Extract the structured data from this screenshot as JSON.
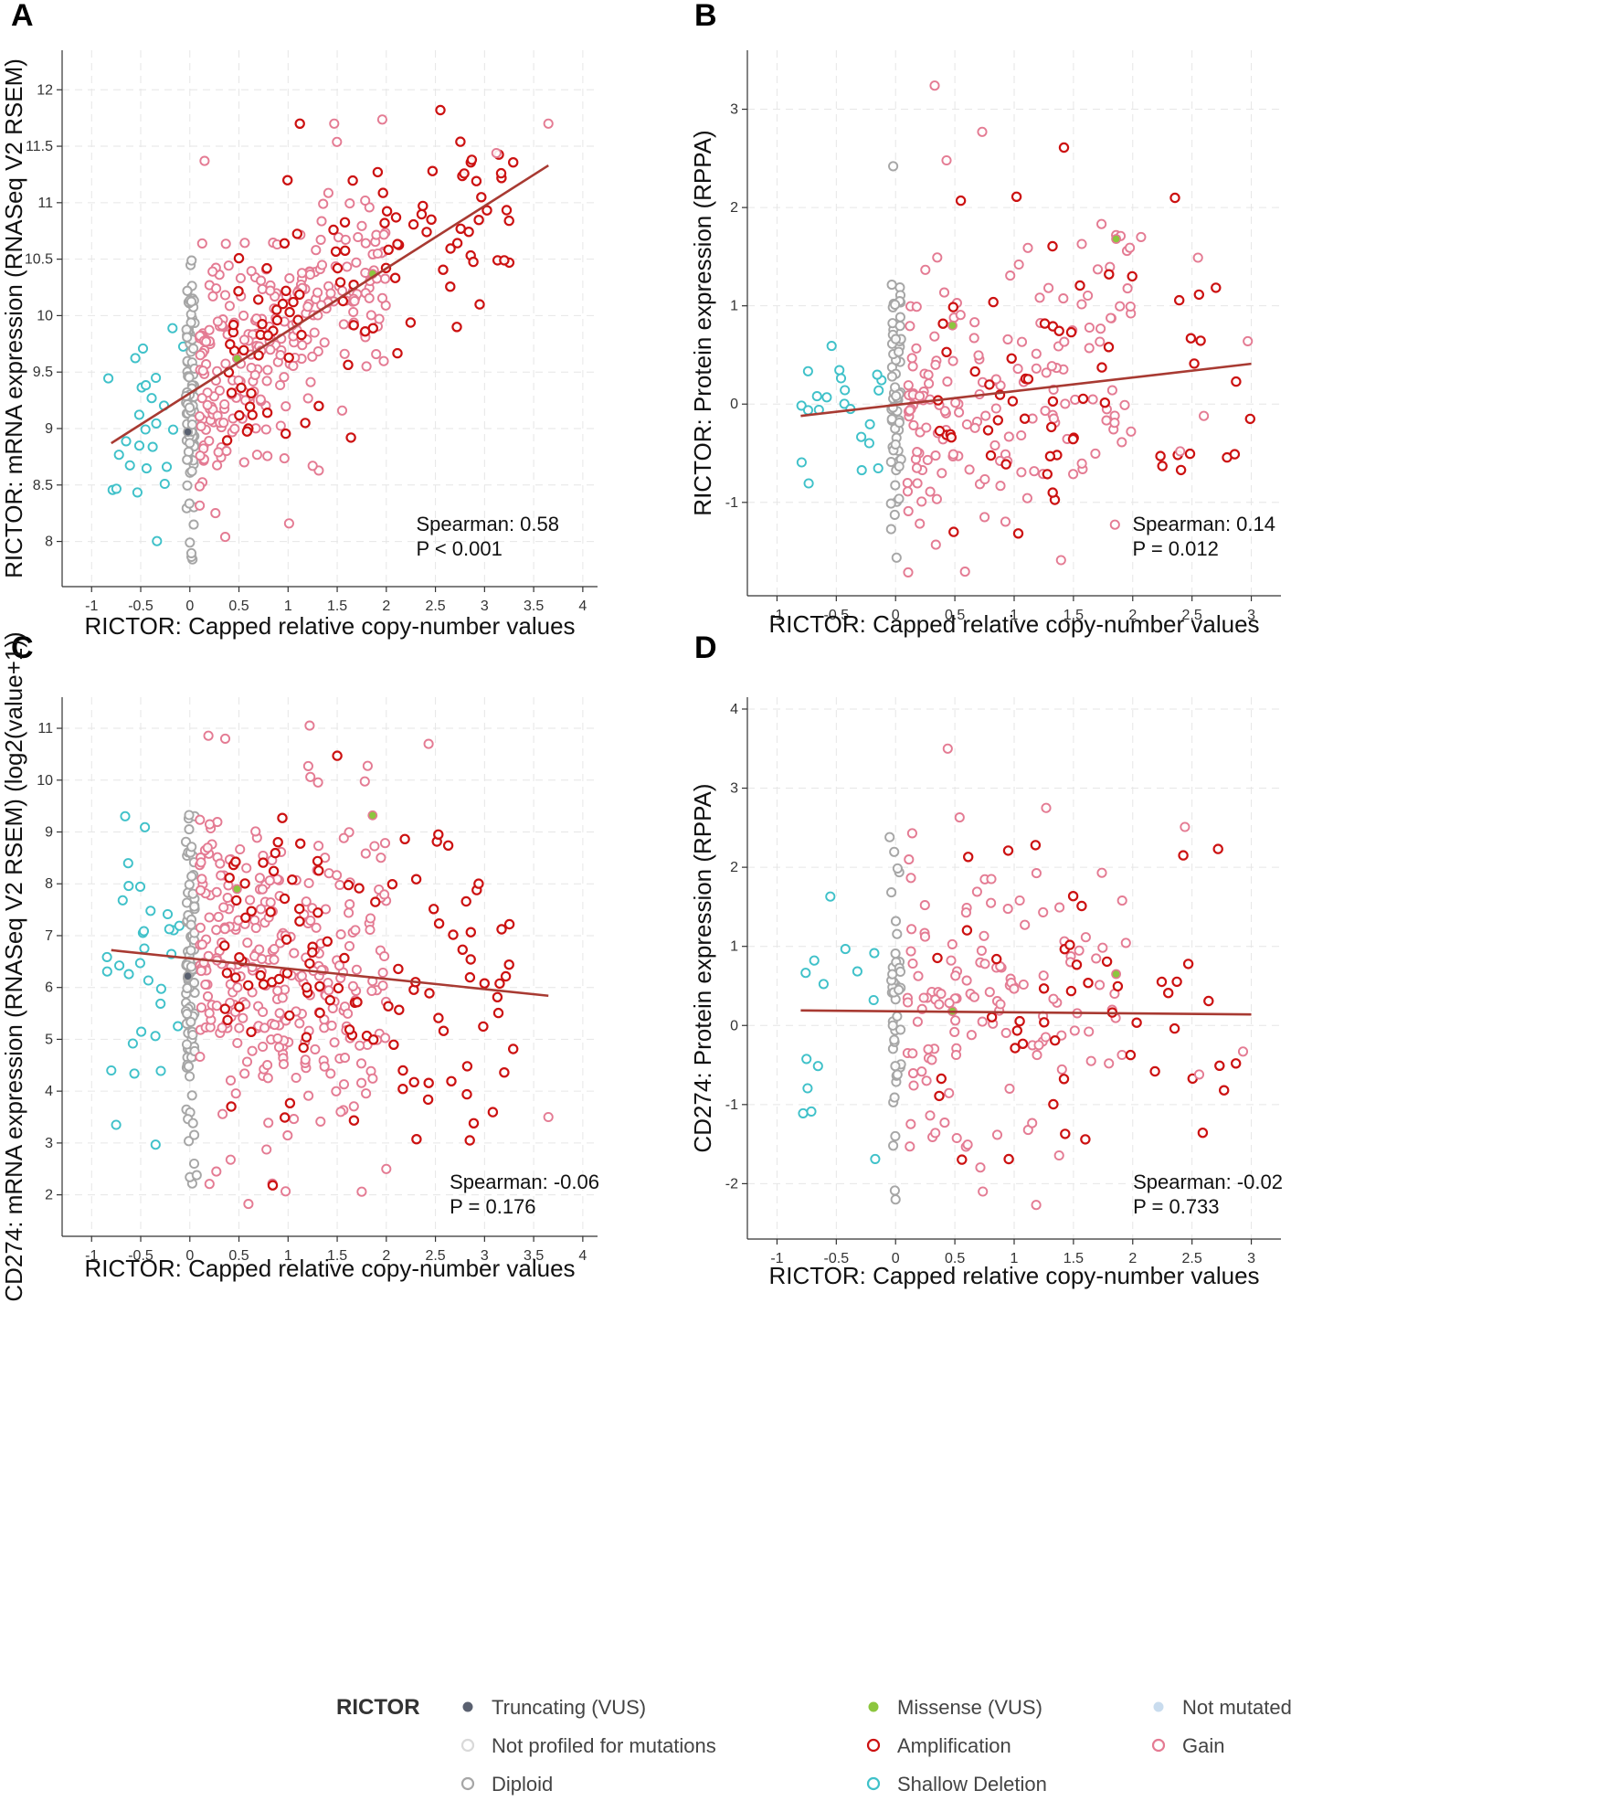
{
  "legend": {
    "title": "RICTOR",
    "items": [
      {
        "key": "truncating",
        "label": "Truncating (VUS)",
        "fill": "#5a6170",
        "stroke": "#5a6170"
      },
      {
        "key": "missense",
        "label": "Missense (VUS)",
        "fill": "#8cc63f",
        "stroke": "#8cc63f"
      },
      {
        "key": "not_mutated",
        "label": "Not mutated",
        "fill": "#c9dcee",
        "stroke": "#c9dcee"
      },
      {
        "key": "not_profiled",
        "label": "Not profiled for mutations",
        "fill": "#ffffff",
        "stroke": "#d9d9d9"
      },
      {
        "key": "amplification",
        "label": "Amplification",
        "fill": "none",
        "stroke": "#cc1111"
      },
      {
        "key": "gain",
        "label": "Gain",
        "fill": "none",
        "stroke": "#e47b93"
      },
      {
        "key": "diploid",
        "label": "Diploid",
        "fill": "none",
        "stroke": "#a6a6a6"
      },
      {
        "key": "shallow_deletion",
        "label": "Shallow Deletion",
        "fill": "none",
        "stroke": "#3fc1c9"
      }
    ]
  },
  "colors": {
    "amplification": "#cc1111",
    "gain": "#e47b93",
    "diploid": "#a6a6a6",
    "shallow_deletion": "#3fc1c9",
    "not_mutated_fill": "#c9dcee",
    "truncating": "#5a6170",
    "missense": "#8cc63f",
    "regression_line": "#a83a32"
  },
  "chart_data": [
    {
      "panel": "A",
      "type": "scatter",
      "xlabel": "RICTOR: Capped relative copy-number values",
      "ylabel": "RICTOR: mRNA expression (RNASeq V2 RSEM)",
      "xlim": [
        -1.3,
        4.15
      ],
      "ylim": [
        7.6,
        12.35
      ],
      "xticks": [
        -1,
        -0.5,
        0,
        0.5,
        1,
        1.5,
        2,
        2.5,
        3,
        3.5,
        4
      ],
      "yticks": [
        8,
        8.5,
        9,
        9.5,
        10,
        10.5,
        11,
        11.5,
        12
      ],
      "spearman": "Spearman: 0.58",
      "pvalue": "P < 0.001",
      "regression": {
        "x": [
          -0.8,
          3.65
        ],
        "y": [
          8.87,
          11.33
        ]
      },
      "special_points": [
        {
          "cat": "truncating",
          "x": -0.02,
          "y": 8.97
        },
        {
          "cat": "missense",
          "x": 0.48,
          "y": 9.62
        },
        {
          "cat": "missense",
          "x": 1.86,
          "y": 10.37
        }
      ],
      "scatter": {
        "seed": 11,
        "slope": 0.55,
        "intercept": 9.31,
        "groups": [
          {
            "cat": "shallow_deletion",
            "n": 26,
            "xr": [
              -0.85,
              -0.05
            ],
            "sd": 0.48
          },
          {
            "cat": "diploid",
            "n": 95,
            "xr": [
              -0.04,
              0.05
            ],
            "sd": 0.5
          },
          {
            "cat": "gain",
            "n": 265,
            "xr": [
              0.1,
              2.0
            ],
            "sd": 0.45
          },
          {
            "cat": "amplification",
            "n": 95,
            "xr": [
              0.35,
              3.3
            ],
            "sd": 0.45
          }
        ],
        "outliers": [
          {
            "cat": "gain",
            "x": 0.15,
            "y": 11.37
          },
          {
            "cat": "amplification",
            "x": 1.12,
            "y": 11.7
          },
          {
            "cat": "gain",
            "x": 1.47,
            "y": 11.7
          },
          {
            "cat": "amplification",
            "x": 2.55,
            "y": 11.82
          },
          {
            "cat": "gain",
            "x": 3.65,
            "y": 11.7
          },
          {
            "cat": "gain",
            "x": 3.12,
            "y": 11.44
          },
          {
            "cat": "amplification",
            "x": 2.87,
            "y": 11.38
          },
          {
            "cat": "amplification",
            "x": 2.47,
            "y": 11.28
          },
          {
            "cat": "amplification",
            "x": 3.25,
            "y": 10.84
          },
          {
            "cat": "amplification",
            "x": 3.2,
            "y": 10.49
          },
          {
            "cat": "amplification",
            "x": 2.95,
            "y": 10.1
          },
          {
            "cat": "gain",
            "x": 1.01,
            "y": 8.16
          },
          {
            "cat": "gain",
            "x": 0.36,
            "y": 8.04
          },
          {
            "cat": "diploid",
            "x": 0.0,
            "y": 7.99
          },
          {
            "cat": "amplification",
            "x": 1.64,
            "y": 8.92
          },
          {
            "cat": "gain",
            "x": 1.25,
            "y": 8.67
          }
        ]
      }
    },
    {
      "panel": "B",
      "type": "scatter",
      "xlabel": "RICTOR: Capped relative copy-number values",
      "ylabel": "RICTOR: Protein expression (RPPA)",
      "xlim": [
        -1.25,
        3.25
      ],
      "ylim": [
        -1.95,
        3.6
      ],
      "xticks": [
        -1,
        -0.5,
        0,
        0.5,
        1,
        1.5,
        2,
        2.5,
        3
      ],
      "yticks": [
        -1,
        0,
        1,
        2,
        3
      ],
      "spearman": "Spearman: 0.14",
      "pvalue": "P = 0.012",
      "regression": {
        "x": [
          -0.8,
          3.0
        ],
        "y": [
          -0.12,
          0.41
        ]
      },
      "special_points": [
        {
          "cat": "missense",
          "x": 0.48,
          "y": 0.8
        },
        {
          "cat": "missense",
          "x": 1.86,
          "y": 1.68
        }
      ],
      "scatter": {
        "seed": 23,
        "slope": 0.14,
        "intercept": 0.0,
        "groups": [
          {
            "cat": "shallow_deletion",
            "n": 22,
            "xr": [
              -0.8,
              -0.08
            ],
            "sd": 0.45
          },
          {
            "cat": "diploid",
            "n": 60,
            "xr": [
              -0.04,
              0.05
            ],
            "sd": 0.7
          },
          {
            "cat": "gain",
            "n": 165,
            "xr": [
              0.1,
              2.0
            ],
            "sd": 0.7
          },
          {
            "cat": "amplification",
            "n": 55,
            "xr": [
              0.35,
              3.0
            ],
            "sd": 0.7
          }
        ],
        "outliers": [
          {
            "cat": "gain",
            "x": 0.33,
            "y": 3.24
          },
          {
            "cat": "gain",
            "x": 0.73,
            "y": 2.77
          },
          {
            "cat": "amplification",
            "x": 1.42,
            "y": 2.61
          },
          {
            "cat": "gain",
            "x": 0.43,
            "y": 2.48
          },
          {
            "cat": "diploid",
            "x": -0.02,
            "y": 2.42
          },
          {
            "cat": "amplification",
            "x": 0.55,
            "y": 2.07
          },
          {
            "cat": "amplification",
            "x": 1.02,
            "y": 2.11
          },
          {
            "cat": "gain",
            "x": 2.07,
            "y": 1.7
          },
          {
            "cat": "gain",
            "x": 2.55,
            "y": 1.49
          },
          {
            "cat": "amplification",
            "x": 2.49,
            "y": 0.67
          },
          {
            "cat": "gain",
            "x": 2.97,
            "y": 0.64
          },
          {
            "cat": "amplification",
            "x": 2.99,
            "y": -0.15
          },
          {
            "cat": "amplification",
            "x": 2.86,
            "y": -0.51
          },
          {
            "cat": "gain",
            "x": 2.6,
            "y": -0.12
          },
          {
            "cat": "gain",
            "x": 2.4,
            "y": -0.48
          },
          {
            "cat": "amplification",
            "x": 2.25,
            "y": -0.63
          },
          {
            "cat": "gain",
            "x": 0.34,
            "y": -1.43
          },
          {
            "cat": "amplification",
            "x": 0.49,
            "y": -1.3
          }
        ]
      }
    },
    {
      "panel": "C",
      "type": "scatter",
      "xlabel": "RICTOR: Capped relative copy-number values",
      "ylabel": "CD274: mRNA expression (RNASeq V2 RSEM) (log2(value+1))",
      "xlim": [
        -1.3,
        4.15
      ],
      "ylim": [
        1.2,
        11.6
      ],
      "xticks": [
        -1,
        -0.5,
        0,
        0.5,
        1,
        1.5,
        2,
        2.5,
        3,
        3.5,
        4
      ],
      "yticks": [
        2,
        3,
        4,
        5,
        6,
        7,
        8,
        9,
        10,
        11
      ],
      "spearman": "Spearman: -0.06",
      "pvalue": "P = 0.176",
      "regression": {
        "x": [
          -0.8,
          3.65
        ],
        "y": [
          6.72,
          5.84
        ]
      },
      "special_points": [
        {
          "cat": "truncating",
          "x": -0.02,
          "y": 6.22
        },
        {
          "cat": "missense",
          "x": 0.48,
          "y": 7.9
        },
        {
          "cat": "missense",
          "x": 1.86,
          "y": 9.32
        }
      ],
      "scatter": {
        "seed": 37,
        "slope": -0.2,
        "intercept": 6.55,
        "groups": [
          {
            "cat": "shallow_deletion",
            "n": 30,
            "xr": [
              -0.85,
              -0.1
            ],
            "sd": 1.45
          },
          {
            "cat": "diploid",
            "n": 100,
            "xr": [
              -0.04,
              0.05
            ],
            "sd": 1.6
          },
          {
            "cat": "gain",
            "n": 300,
            "xr": [
              0.1,
              2.0
            ],
            "sd": 1.55
          },
          {
            "cat": "amplification",
            "n": 105,
            "xr": [
              0.35,
              3.3
            ],
            "sd": 1.45
          }
        ],
        "outliers": [
          {
            "cat": "gain",
            "x": 2.43,
            "y": 10.7
          },
          {
            "cat": "gain",
            "x": 0.36,
            "y": 10.8
          },
          {
            "cat": "amplification",
            "x": 1.5,
            "y": 10.47
          },
          {
            "cat": "amplification",
            "x": 2.53,
            "y": 8.95
          },
          {
            "cat": "amplification",
            "x": 2.63,
            "y": 8.74
          },
          {
            "cat": "amplification",
            "x": 3.25,
            "y": 6.44
          },
          {
            "cat": "amplification",
            "x": 3.0,
            "y": 6.08
          },
          {
            "cat": "amplification",
            "x": 3.2,
            "y": 4.36
          },
          {
            "cat": "gain",
            "x": 3.65,
            "y": 3.5
          },
          {
            "cat": "amplification",
            "x": 2.85,
            "y": 3.05
          },
          {
            "cat": "amplification",
            "x": 2.89,
            "y": 3.38
          },
          {
            "cat": "amplification",
            "x": 2.82,
            "y": 3.94
          },
          {
            "cat": "gain",
            "x": 1.75,
            "y": 2.06
          },
          {
            "cat": "gain",
            "x": 2.0,
            "y": 2.5
          },
          {
            "cat": "gain",
            "x": 0.2,
            "y": 2.21
          },
          {
            "cat": "gain",
            "x": 0.27,
            "y": 2.45
          },
          {
            "cat": "diploid",
            "x": 0.0,
            "y": 2.34
          },
          {
            "cat": "diploid",
            "x": 0.07,
            "y": 2.38
          },
          {
            "cat": "shallow_deletion",
            "x": -0.75,
            "y": 3.35
          },
          {
            "cat": "shallow_deletion",
            "x": -0.8,
            "y": 4.4
          }
        ]
      }
    },
    {
      "panel": "D",
      "type": "scatter",
      "xlabel": "RICTOR: Capped relative copy-number values",
      "ylabel": "CD274: Protein expression (RPPA)",
      "xlim": [
        -1.25,
        3.25
      ],
      "ylim": [
        -2.7,
        4.15
      ],
      "xticks": [
        -1,
        -0.5,
        0,
        0.5,
        1,
        1.5,
        2,
        2.5,
        3
      ],
      "yticks": [
        -2,
        -1,
        0,
        1,
        2,
        3,
        4
      ],
      "spearman": "Spearman: -0.02",
      "pvalue": "P = 0.733",
      "regression": {
        "x": [
          -0.8,
          3.0
        ],
        "y": [
          0.19,
          0.14
        ]
      },
      "special_points": [
        {
          "cat": "missense",
          "x": 0.48,
          "y": 0.18
        },
        {
          "cat": "missense",
          "x": 1.86,
          "y": 0.65
        }
      ],
      "scatter": {
        "seed": 53,
        "slope": 0.0,
        "intercept": 0.17,
        "groups": [
          {
            "cat": "shallow_deletion",
            "n": 12,
            "xr": [
              -0.8,
              -0.15
            ],
            "sd": 0.85
          },
          {
            "cat": "diploid",
            "n": 42,
            "xr": [
              -0.04,
              0.05
            ],
            "sd": 0.85
          },
          {
            "cat": "gain",
            "n": 125,
            "xr": [
              0.1,
              2.0
            ],
            "sd": 0.85
          },
          {
            "cat": "amplification",
            "n": 42,
            "xr": [
              0.35,
              2.95
            ],
            "sd": 0.85
          }
        ],
        "outliers": [
          {
            "cat": "gain",
            "x": 0.44,
            "y": 3.5
          },
          {
            "cat": "gain",
            "x": 1.27,
            "y": 2.75
          },
          {
            "cat": "gain",
            "x": 0.54,
            "y": 2.63
          },
          {
            "cat": "gain",
            "x": 2.44,
            "y": 2.51
          },
          {
            "cat": "diploid",
            "x": -0.05,
            "y": 2.38
          },
          {
            "cat": "gain",
            "x": 0.14,
            "y": 2.43
          },
          {
            "cat": "amplification",
            "x": 1.18,
            "y": 2.28
          },
          {
            "cat": "amplification",
            "x": 0.95,
            "y": 2.21
          },
          {
            "cat": "gain",
            "x": 1.74,
            "y": 1.93
          },
          {
            "cat": "amplification",
            "x": 2.77,
            "y": -0.82
          },
          {
            "cat": "amplification",
            "x": 2.87,
            "y": -0.48
          },
          {
            "cat": "gain",
            "x": 2.93,
            "y": -0.33
          },
          {
            "cat": "gain",
            "x": 2.56,
            "y": -0.62
          },
          {
            "cat": "diploid",
            "x": 0.0,
            "y": -2.2
          },
          {
            "cat": "gain",
            "x": 0.12,
            "y": -1.53
          },
          {
            "cat": "diploid",
            "x": -0.02,
            "y": -1.52
          },
          {
            "cat": "amplification",
            "x": 1.6,
            "y": -1.44
          },
          {
            "cat": "amplification",
            "x": 1.43,
            "y": -1.37
          },
          {
            "cat": "shallow_deletion",
            "x": -0.78,
            "y": -1.11
          },
          {
            "cat": "shallow_deletion",
            "x": -0.55,
            "y": 1.63
          }
        ]
      }
    }
  ]
}
